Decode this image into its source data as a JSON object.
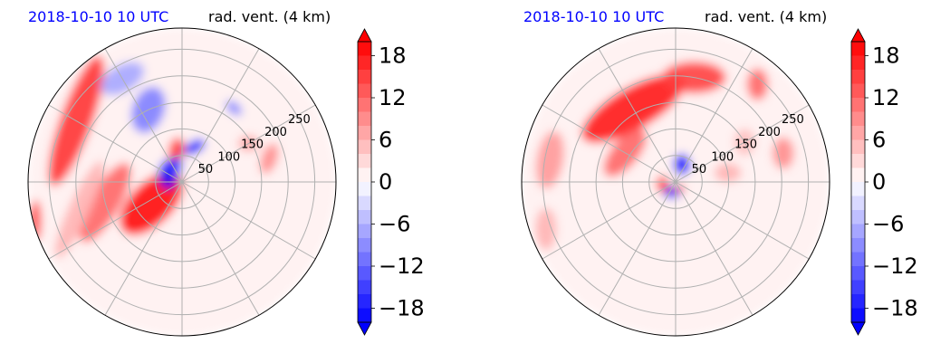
{
  "chart_data": [
    {
      "type": "heatmap",
      "projection": "polar",
      "title_left": "2018-10-10 10 UTC",
      "title_right": "rad. vent. (4 km)",
      "range_rings": [
        50,
        100,
        150,
        200,
        250
      ],
      "range_labels": [
        "50",
        "100",
        "150",
        "200",
        "250"
      ],
      "rmax": 290,
      "radial_spokes_deg": [
        0,
        30,
        60,
        90,
        120,
        150,
        180,
        210,
        240,
        270,
        300,
        330
      ],
      "grid": true,
      "colorbar": {
        "ticks": [
          18,
          12,
          6,
          0,
          -6,
          -12,
          -18
        ],
        "tick_labels": [
          "18",
          "12",
          "6",
          "0",
          "−6",
          "−12",
          "−18"
        ],
        "vmin": -20,
        "vmax": 20,
        "extend": "both",
        "levels": 20
      },
      "colormap": {
        "negative": "#0000ff",
        "zero": "#ffffff",
        "positive": "#ff0000"
      },
      "features": [
        {
          "az": 300,
          "r": 230,
          "rx": 30,
          "ry": 130,
          "rot": 20,
          "v": 16
        },
        {
          "az": 255,
          "r": 150,
          "rx": 28,
          "ry": 85,
          "rot": 30,
          "v": 12
        },
        {
          "az": 235,
          "r": 70,
          "rx": 40,
          "ry": 75,
          "rot": 45,
          "v": 19
        },
        {
          "az": 255,
          "r": 200,
          "rx": 20,
          "ry": 100,
          "rot": 25,
          "v": 6
        },
        {
          "az": 300,
          "r": 30,
          "rx": 18,
          "ry": 28,
          "rot": 0,
          "v": -20
        },
        {
          "az": 330,
          "r": 30,
          "rx": 14,
          "ry": 22,
          "rot": 30,
          "v": -16
        },
        {
          "az": 350,
          "r": 60,
          "rx": 15,
          "ry": 25,
          "rot": 10,
          "v": 16
        },
        {
          "az": 20,
          "r": 70,
          "rx": 12,
          "ry": 22,
          "rot": 60,
          "v": -18
        },
        {
          "az": 335,
          "r": 150,
          "rx": 30,
          "ry": 45,
          "rot": 20,
          "v": -10
        },
        {
          "az": 330,
          "r": 225,
          "rx": 45,
          "ry": 25,
          "rot": -30,
          "v": -7
        },
        {
          "az": 60,
          "r": 145,
          "rx": 20,
          "ry": 15,
          "rot": 0,
          "v": 7
        },
        {
          "az": 35,
          "r": 170,
          "rx": 18,
          "ry": 10,
          "rot": 40,
          "v": -10
        },
        {
          "az": 75,
          "r": 170,
          "rx": 15,
          "ry": 30,
          "rot": 20,
          "v": 9
        },
        {
          "az": 255,
          "r": 285,
          "rx": 10,
          "ry": 40,
          "rot": 0,
          "v": 17
        },
        {
          "az": 0,
          "r": 0,
          "rx": 290,
          "ry": 290,
          "rot": 0,
          "v": 1
        }
      ]
    },
    {
      "type": "heatmap",
      "projection": "polar",
      "title_left": "2018-10-10 10 UTC",
      "title_right": "rad. vent. (4 km)",
      "range_rings": [
        50,
        100,
        150,
        200,
        250
      ],
      "range_labels": [
        "50",
        "100",
        "150",
        "200",
        "250"
      ],
      "rmax": 290,
      "radial_spokes_deg": [
        0,
        30,
        60,
        90,
        120,
        150,
        180,
        210,
        240,
        270,
        300,
        330
      ],
      "grid": true,
      "colorbar": {
        "ticks": [
          18,
          12,
          6,
          0,
          -6,
          -12,
          -18
        ],
        "tick_labels": [
          "18",
          "12",
          "6",
          "0",
          "−6",
          "−12",
          "−18"
        ],
        "vmin": -20,
        "vmax": 20,
        "extend": "both",
        "levels": 20
      },
      "colormap": {
        "negative": "#0000ff",
        "zero": "#ffffff",
        "positive": "#ff0000"
      },
      "features": [
        {
          "az": 330,
          "r": 160,
          "rx": 40,
          "ry": 110,
          "rot": 60,
          "v": 18
        },
        {
          "az": 10,
          "r": 200,
          "rx": 30,
          "ry": 60,
          "rot": 90,
          "v": 15
        },
        {
          "az": 300,
          "r": 110,
          "rx": 25,
          "ry": 55,
          "rot": 40,
          "v": 12
        },
        {
          "az": 280,
          "r": 240,
          "rx": 25,
          "ry": 55,
          "rot": 10,
          "v": 8
        },
        {
          "az": 20,
          "r": 35,
          "rx": 16,
          "ry": 20,
          "rot": 0,
          "v": -20
        },
        {
          "az": 200,
          "r": 20,
          "rx": 18,
          "ry": 12,
          "rot": 0,
          "v": -18
        },
        {
          "az": 260,
          "r": 25,
          "rx": 12,
          "ry": 16,
          "rot": 0,
          "v": 15
        },
        {
          "az": 150,
          "r": 15,
          "rx": 10,
          "ry": 8,
          "rot": 0,
          "v": 14
        },
        {
          "az": 80,
          "r": 100,
          "rx": 25,
          "ry": 18,
          "rot": 0,
          "v": 6
        },
        {
          "az": 60,
          "r": 150,
          "rx": 20,
          "ry": 25,
          "rot": 0,
          "v": 5
        },
        {
          "az": 75,
          "r": 210,
          "rx": 20,
          "ry": 30,
          "rot": 0,
          "v": 9
        },
        {
          "az": 40,
          "r": 240,
          "rx": 20,
          "ry": 30,
          "rot": 0,
          "v": 12
        },
        {
          "az": 250,
          "r": 260,
          "rx": 20,
          "ry": 40,
          "rot": 0,
          "v": 6
        },
        {
          "az": 0,
          "r": 0,
          "rx": 290,
          "ry": 290,
          "rot": 0,
          "v": 1
        }
      ]
    }
  ]
}
